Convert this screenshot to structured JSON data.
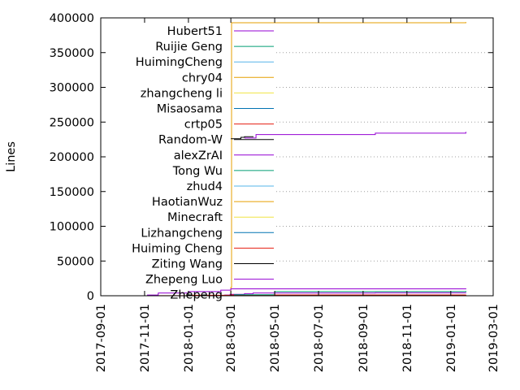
{
  "chart_data": {
    "type": "line",
    "title": "",
    "xlabel": "",
    "ylabel": "Lines",
    "x_is_date": true,
    "xlim": [
      "2017-09-01",
      "2019-03-01"
    ],
    "ylim": [
      0,
      400000
    ],
    "yticks": [
      0,
      50000,
      100000,
      150000,
      200000,
      250000,
      300000,
      350000,
      400000
    ],
    "ytick_labels": [
      "0",
      "50000",
      "100000",
      "150000",
      "200000",
      "250000",
      "300000",
      "350000",
      "400000"
    ],
    "xticks": [
      "2017-09-01",
      "2017-11-01",
      "2018-01-01",
      "2018-03-01",
      "2018-05-01",
      "2018-07-01",
      "2018-09-01",
      "2018-11-01",
      "2019-01-01",
      "2019-03-01"
    ],
    "xtick_labels": [
      "2017-09-01",
      "2017-11-01",
      "2018-01-01",
      "2018-03-01",
      "2018-05-01",
      "2018-07-01",
      "2018-09-01",
      "2018-11-01",
      "2019-01-01",
      "2019-03-01"
    ],
    "grid": true,
    "legend_position": "inside-left",
    "series": [
      {
        "name": "Hubert51",
        "color": "#9400d3",
        "x": [
          "2018-02-20",
          "2018-02-28",
          "2018-03-20",
          "2018-04-01",
          "2018-09-18",
          "2019-01-22"
        ],
        "y": [
          1000,
          2000,
          3000,
          4000,
          4200,
          4500
        ]
      },
      {
        "name": "Ruijie Geng",
        "color": "#009e73",
        "x": [
          "2018-03-01",
          "2018-05-01",
          "2019-01-22"
        ],
        "y": [
          0,
          200,
          300
        ]
      },
      {
        "name": "HuimingCheng",
        "color": "#56b4e9",
        "x": [
          "2018-03-01",
          "2019-01-22"
        ],
        "y": [
          0,
          100
        ]
      },
      {
        "name": "chry04",
        "color": "#e69f00",
        "x": [
          "2018-02-28",
          "2018-03-01",
          "2018-03-02",
          "2019-01-22"
        ],
        "y": [
          0,
          12000,
          393000,
          394000
        ]
      },
      {
        "name": "zhangcheng li",
        "color": "#f0e442",
        "x": [
          "2018-03-01",
          "2019-01-22"
        ],
        "y": [
          0,
          100
        ]
      },
      {
        "name": "Misaosama",
        "color": "#0072b2",
        "x": [
          "2018-03-01",
          "2019-01-22"
        ],
        "y": [
          0,
          100
        ]
      },
      {
        "name": "crtp05",
        "color": "#e51e10",
        "x": [
          "2017-10-15",
          "2017-11-15",
          "2018-01-01",
          "2018-03-01",
          "2019-01-22"
        ],
        "y": [
          0,
          200,
          800,
          1200,
          1500
        ]
      },
      {
        "name": "Random-W",
        "color": "#000000",
        "x": [
          "2018-03-01",
          "2018-03-15",
          "2018-03-20",
          "2018-04-01"
        ],
        "y": [
          226000,
          228000,
          229000,
          229500
        ]
      },
      {
        "name": "alexZrAI",
        "color": "#9400d3",
        "x": [
          "2018-03-20",
          "2018-04-05",
          "2018-09-18",
          "2019-01-22"
        ],
        "y": [
          227000,
          232000,
          234000,
          236000
        ]
      },
      {
        "name": "Tong Wu",
        "color": "#009e73",
        "x": [
          "2018-03-01",
          "2019-01-22"
        ],
        "y": [
          0,
          100
        ]
      },
      {
        "name": "zhud4",
        "color": "#56b4e9",
        "x": [
          "2018-03-01",
          "2019-01-22"
        ],
        "y": [
          0,
          100
        ]
      },
      {
        "name": "HaotianWuz",
        "color": "#e69f00",
        "x": [
          "2018-03-01",
          "2019-01-22"
        ],
        "y": [
          0,
          100
        ]
      },
      {
        "name": "Minecraft",
        "color": "#f0e442",
        "x": [
          "2018-03-01",
          "2019-01-22"
        ],
        "y": [
          0,
          100
        ]
      },
      {
        "name": "Lizhangcheng",
        "color": "#0072b2",
        "x": [
          "2018-03-01",
          "2019-01-22"
        ],
        "y": [
          0,
          100
        ]
      },
      {
        "name": "Huiming Cheng",
        "color": "#e51e10",
        "x": [
          "2018-03-01",
          "2019-01-22"
        ],
        "y": [
          0,
          100
        ]
      },
      {
        "name": "Ziting Wang",
        "color": "#000000",
        "x": [
          "2018-02-01",
          "2018-03-01",
          "2019-01-22"
        ],
        "y": [
          0,
          100,
          200
        ]
      },
      {
        "name": "Zhepeng Luo",
        "color": "#9400d3",
        "x": [
          "2017-10-20",
          "2017-11-05",
          "2017-11-20",
          "2018-01-01",
          "2018-02-15",
          "2018-03-01",
          "2019-01-22"
        ],
        "y": [
          0,
          1000,
          4000,
          6000,
          8000,
          10000,
          10500
        ]
      },
      {
        "name": "Zhepeng",
        "color": "#009e73",
        "x": [
          "2018-03-01",
          "2018-05-01",
          "2019-01-22"
        ],
        "y": [
          0,
          6000,
          7000
        ]
      }
    ]
  }
}
